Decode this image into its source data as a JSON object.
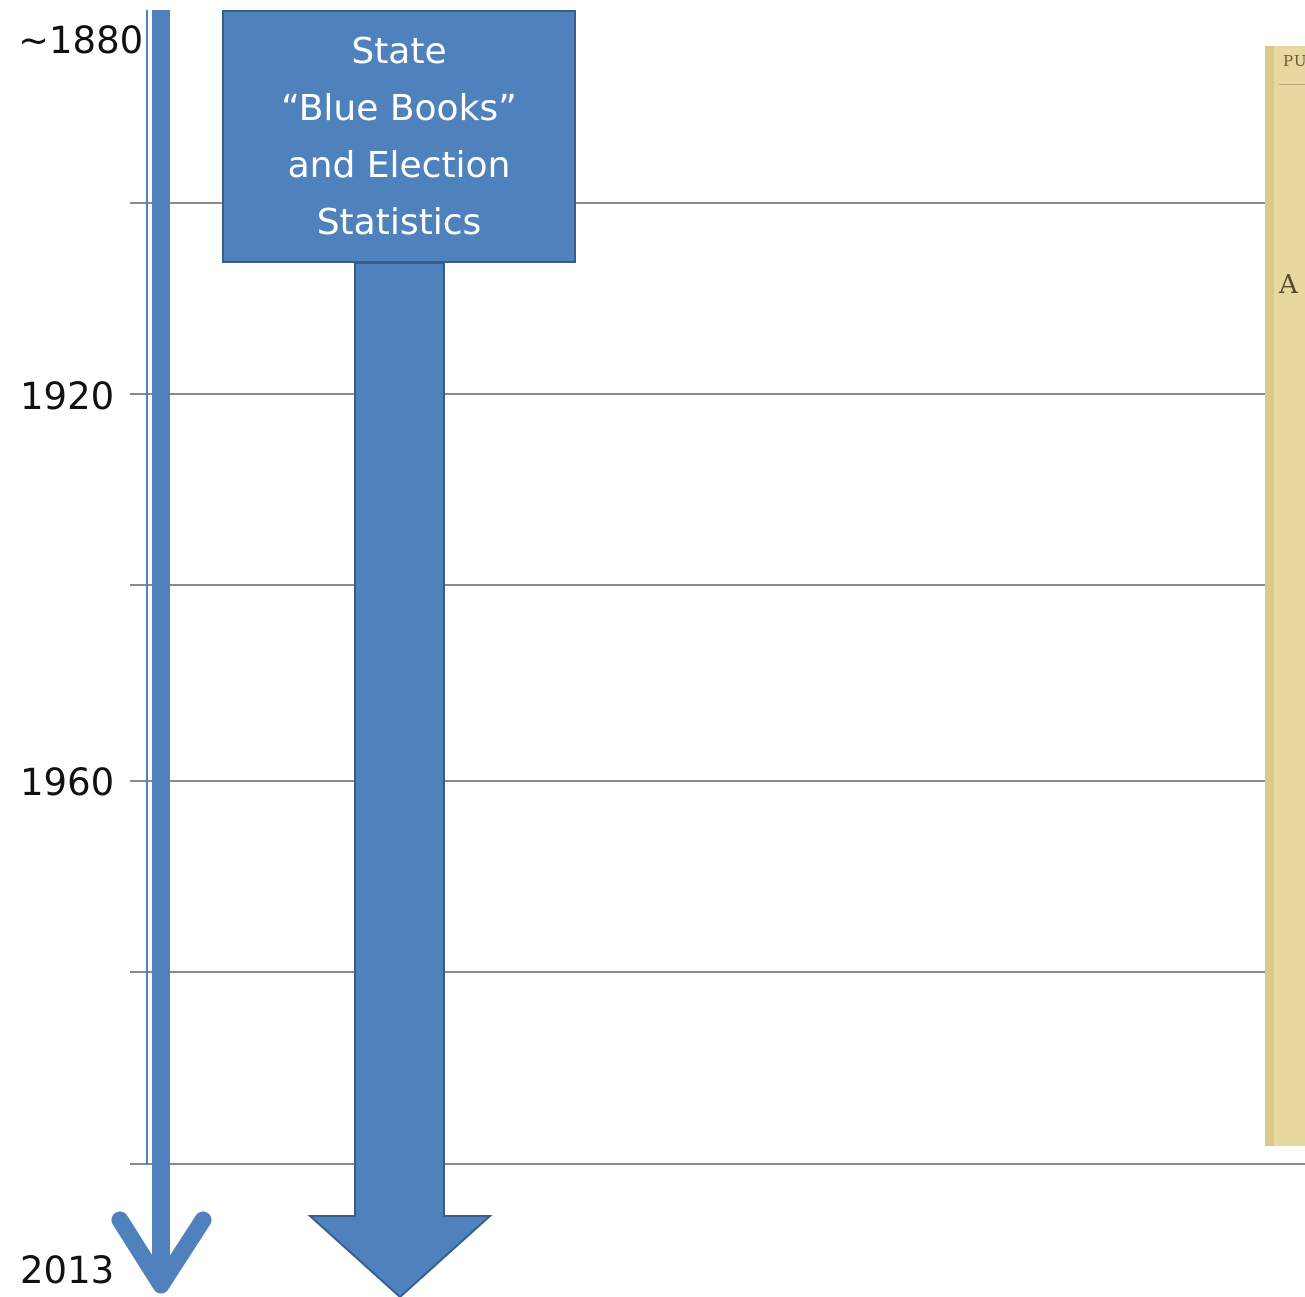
{
  "timeline": {
    "labels": {
      "start": "~1880",
      "y1920": "1920",
      "y1960": "1960",
      "end": "2013"
    }
  },
  "source_box": {
    "lines": [
      "State",
      "“Blue Books”",
      "and Election",
      "Statistics"
    ]
  },
  "scan": {
    "top_text": "PU",
    "letter": "A"
  },
  "colors": {
    "accent": "#4f81bd",
    "accent_border": "#385d8a",
    "gridline": "#8a8a8a",
    "scan_paper": "#e9d7a0"
  }
}
